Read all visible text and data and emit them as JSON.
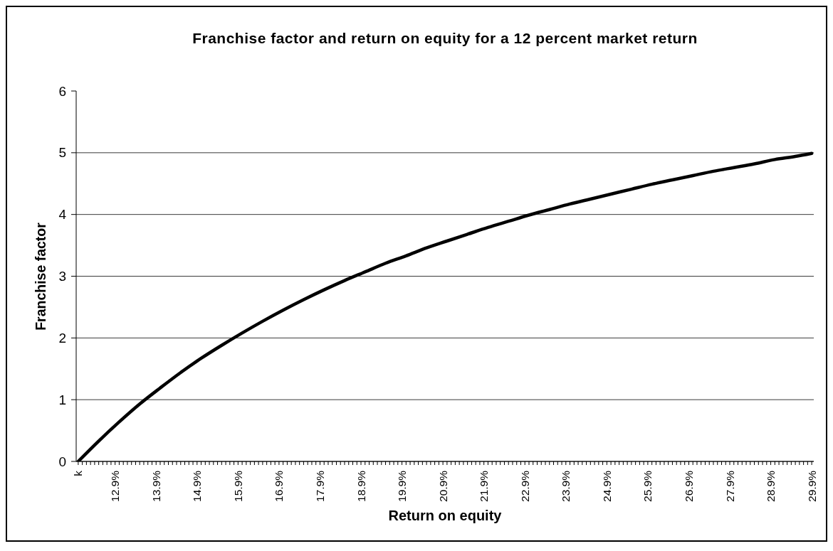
{
  "chart_data": {
    "type": "line",
    "title": "Franchise factor and return on equity for a 12 percent market return",
    "xlabel": "Return on equity",
    "ylabel": "Franchise factor",
    "x": [
      12,
      12.5,
      13,
      13.5,
      14,
      14.5,
      15,
      15.5,
      16,
      16.5,
      17,
      17.5,
      18,
      18.5,
      19,
      19.5,
      20,
      20.5,
      21,
      21.5,
      22,
      22.5,
      23,
      23.5,
      24,
      24.5,
      25,
      25.5,
      26,
      26.5,
      27,
      27.5,
      28,
      28.5,
      29,
      29.5,
      29.9
    ],
    "series": [
      {
        "color": "#000000",
        "values": [
          0,
          0.33,
          0.64,
          0.93,
          1.19,
          1.44,
          1.67,
          1.88,
          2.08,
          2.27,
          2.45,
          2.62,
          2.78,
          2.93,
          3.07,
          3.21,
          3.33,
          3.46,
          3.57,
          3.68,
          3.79,
          3.89,
          3.99,
          4.08,
          4.17,
          4.25,
          4.33,
          4.41,
          4.49,
          4.56,
          4.63,
          4.7,
          4.76,
          4.82,
          4.89,
          4.94,
          4.99
        ]
      }
    ],
    "xlim": [
      11.95,
      29.95
    ],
    "xticks": [
      {
        "value": 12,
        "label": "k"
      },
      {
        "value": 12.1,
        "label": null
      },
      {
        "value": 12.2,
        "label": null
      },
      {
        "value": 12.3,
        "label": null
      },
      {
        "value": 12.4,
        "label": null
      },
      {
        "value": 12.5,
        "label": null
      },
      {
        "value": 12.6,
        "label": null
      },
      {
        "value": 12.7,
        "label": null
      },
      {
        "value": 12.8,
        "label": null
      },
      {
        "value": 12.9,
        "label": "12.9%"
      },
      {
        "value": 13,
        "label": null
      },
      {
        "value": 13.1,
        "label": null
      },
      {
        "value": 13.2,
        "label": null
      },
      {
        "value": 13.3,
        "label": null
      },
      {
        "value": 13.4,
        "label": null
      },
      {
        "value": 13.5,
        "label": null
      },
      {
        "value": 13.6,
        "label": null
      },
      {
        "value": 13.7,
        "label": null
      },
      {
        "value": 13.8,
        "label": null
      },
      {
        "value": 13.9,
        "label": "13.9%"
      },
      {
        "value": 14,
        "label": null
      },
      {
        "value": 14.1,
        "label": null
      },
      {
        "value": 14.2,
        "label": null
      },
      {
        "value": 14.3,
        "label": null
      },
      {
        "value": 14.4,
        "label": null
      },
      {
        "value": 14.5,
        "label": null
      },
      {
        "value": 14.6,
        "label": null
      },
      {
        "value": 14.7,
        "label": null
      },
      {
        "value": 14.8,
        "label": null
      },
      {
        "value": 14.9,
        "label": "14.9%"
      },
      {
        "value": 15,
        "label": null
      },
      {
        "value": 15.1,
        "label": null
      },
      {
        "value": 15.2,
        "label": null
      },
      {
        "value": 15.3,
        "label": null
      },
      {
        "value": 15.4,
        "label": null
      },
      {
        "value": 15.5,
        "label": null
      },
      {
        "value": 15.6,
        "label": null
      },
      {
        "value": 15.7,
        "label": null
      },
      {
        "value": 15.8,
        "label": null
      },
      {
        "value": 15.9,
        "label": "15.9%"
      },
      {
        "value": 16,
        "label": null
      },
      {
        "value": 16.1,
        "label": null
      },
      {
        "value": 16.2,
        "label": null
      },
      {
        "value": 16.3,
        "label": null
      },
      {
        "value": 16.4,
        "label": null
      },
      {
        "value": 16.5,
        "label": null
      },
      {
        "value": 16.6,
        "label": null
      },
      {
        "value": 16.7,
        "label": null
      },
      {
        "value": 16.8,
        "label": null
      },
      {
        "value": 16.9,
        "label": "16.9%"
      },
      {
        "value": 17,
        "label": null
      },
      {
        "value": 17.1,
        "label": null
      },
      {
        "value": 17.2,
        "label": null
      },
      {
        "value": 17.3,
        "label": null
      },
      {
        "value": 17.4,
        "label": null
      },
      {
        "value": 17.5,
        "label": null
      },
      {
        "value": 17.6,
        "label": null
      },
      {
        "value": 17.7,
        "label": null
      },
      {
        "value": 17.8,
        "label": null
      },
      {
        "value": 17.9,
        "label": "17.9%"
      },
      {
        "value": 18,
        "label": null
      },
      {
        "value": 18.1,
        "label": null
      },
      {
        "value": 18.2,
        "label": null
      },
      {
        "value": 18.3,
        "label": null
      },
      {
        "value": 18.4,
        "label": null
      },
      {
        "value": 18.5,
        "label": null
      },
      {
        "value": 18.6,
        "label": null
      },
      {
        "value": 18.7,
        "label": null
      },
      {
        "value": 18.8,
        "label": null
      },
      {
        "value": 18.9,
        "label": "18.9%"
      },
      {
        "value": 19,
        "label": null
      },
      {
        "value": 19.1,
        "label": null
      },
      {
        "value": 19.2,
        "label": null
      },
      {
        "value": 19.3,
        "label": null
      },
      {
        "value": 19.4,
        "label": null
      },
      {
        "value": 19.5,
        "label": null
      },
      {
        "value": 19.6,
        "label": null
      },
      {
        "value": 19.7,
        "label": null
      },
      {
        "value": 19.8,
        "label": null
      },
      {
        "value": 19.9,
        "label": "19.9%"
      },
      {
        "value": 20,
        "label": null
      },
      {
        "value": 20.1,
        "label": null
      },
      {
        "value": 20.2,
        "label": null
      },
      {
        "value": 20.3,
        "label": null
      },
      {
        "value": 20.4,
        "label": null
      },
      {
        "value": 20.5,
        "label": null
      },
      {
        "value": 20.6,
        "label": null
      },
      {
        "value": 20.7,
        "label": null
      },
      {
        "value": 20.8,
        "label": null
      },
      {
        "value": 20.9,
        "label": "20.9%"
      },
      {
        "value": 21,
        "label": null
      },
      {
        "value": 21.1,
        "label": null
      },
      {
        "value": 21.2,
        "label": null
      },
      {
        "value": 21.3,
        "label": null
      },
      {
        "value": 21.4,
        "label": null
      },
      {
        "value": 21.5,
        "label": null
      },
      {
        "value": 21.6,
        "label": null
      },
      {
        "value": 21.7,
        "label": null
      },
      {
        "value": 21.8,
        "label": null
      },
      {
        "value": 21.9,
        "label": "21.9%"
      },
      {
        "value": 22,
        "label": null
      },
      {
        "value": 22.1,
        "label": null
      },
      {
        "value": 22.2,
        "label": null
      },
      {
        "value": 22.3,
        "label": null
      },
      {
        "value": 22.4,
        "label": null
      },
      {
        "value": 22.5,
        "label": null
      },
      {
        "value": 22.6,
        "label": null
      },
      {
        "value": 22.7,
        "label": null
      },
      {
        "value": 22.8,
        "label": null
      },
      {
        "value": 22.9,
        "label": "22.9%"
      },
      {
        "value": 23,
        "label": null
      },
      {
        "value": 23.1,
        "label": null
      },
      {
        "value": 23.2,
        "label": null
      },
      {
        "value": 23.3,
        "label": null
      },
      {
        "value": 23.4,
        "label": null
      },
      {
        "value": 23.5,
        "label": null
      },
      {
        "value": 23.6,
        "label": null
      },
      {
        "value": 23.7,
        "label": null
      },
      {
        "value": 23.8,
        "label": null
      },
      {
        "value": 23.9,
        "label": "23.9%"
      },
      {
        "value": 24,
        "label": null
      },
      {
        "value": 24.1,
        "label": null
      },
      {
        "value": 24.2,
        "label": null
      },
      {
        "value": 24.3,
        "label": null
      },
      {
        "value": 24.4,
        "label": null
      },
      {
        "value": 24.5,
        "label": null
      },
      {
        "value": 24.6,
        "label": null
      },
      {
        "value": 24.7,
        "label": null
      },
      {
        "value": 24.8,
        "label": null
      },
      {
        "value": 24.9,
        "label": "24.9%"
      },
      {
        "value": 25,
        "label": null
      },
      {
        "value": 25.1,
        "label": null
      },
      {
        "value": 25.2,
        "label": null
      },
      {
        "value": 25.3,
        "label": null
      },
      {
        "value": 25.4,
        "label": null
      },
      {
        "value": 25.5,
        "label": null
      },
      {
        "value": 25.6,
        "label": null
      },
      {
        "value": 25.7,
        "label": null
      },
      {
        "value": 25.8,
        "label": null
      },
      {
        "value": 25.9,
        "label": "25.9%"
      },
      {
        "value": 26,
        "label": null
      },
      {
        "value": 26.1,
        "label": null
      },
      {
        "value": 26.2,
        "label": null
      },
      {
        "value": 26.3,
        "label": null
      },
      {
        "value": 26.4,
        "label": null
      },
      {
        "value": 26.5,
        "label": null
      },
      {
        "value": 26.6,
        "label": null
      },
      {
        "value": 26.7,
        "label": null
      },
      {
        "value": 26.8,
        "label": null
      },
      {
        "value": 26.9,
        "label": "26.9%"
      },
      {
        "value": 27,
        "label": null
      },
      {
        "value": 27.1,
        "label": null
      },
      {
        "value": 27.2,
        "label": null
      },
      {
        "value": 27.3,
        "label": null
      },
      {
        "value": 27.4,
        "label": null
      },
      {
        "value": 27.5,
        "label": null
      },
      {
        "value": 27.6,
        "label": null
      },
      {
        "value": 27.7,
        "label": null
      },
      {
        "value": 27.8,
        "label": null
      },
      {
        "value": 27.9,
        "label": "27.9%"
      },
      {
        "value": 28,
        "label": null
      },
      {
        "value": 28.1,
        "label": null
      },
      {
        "value": 28.2,
        "label": null
      },
      {
        "value": 28.3,
        "label": null
      },
      {
        "value": 28.4,
        "label": null
      },
      {
        "value": 28.5,
        "label": null
      },
      {
        "value": 28.6,
        "label": null
      },
      {
        "value": 28.7,
        "label": null
      },
      {
        "value": 28.8,
        "label": null
      },
      {
        "value": 28.9,
        "label": "28.9%"
      },
      {
        "value": 29,
        "label": null
      },
      {
        "value": 29.1,
        "label": null
      },
      {
        "value": 29.2,
        "label": null
      },
      {
        "value": 29.3,
        "label": null
      },
      {
        "value": 29.4,
        "label": null
      },
      {
        "value": 29.5,
        "label": null
      },
      {
        "value": 29.6,
        "label": null
      },
      {
        "value": 29.7,
        "label": null
      },
      {
        "value": 29.8,
        "label": null
      },
      {
        "value": 29.9,
        "label": "29.9%"
      }
    ],
    "ylim": [
      0,
      6
    ],
    "yticks": [
      0,
      1,
      2,
      3,
      4,
      5,
      6
    ],
    "grid": "y",
    "marker": "none",
    "line_style": "solid"
  }
}
